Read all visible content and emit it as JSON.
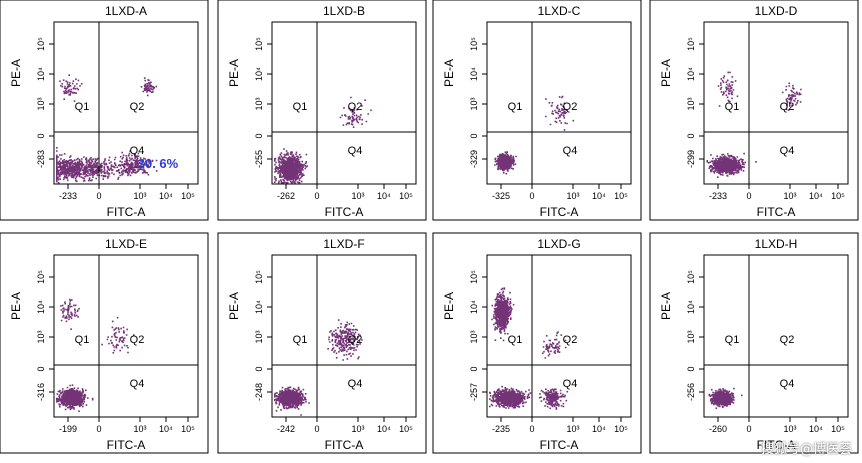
{
  "colors": {
    "panel_bg": "#ffffff",
    "dot": "#5b0f5e",
    "frame": "#000000",
    "highlight": "#2d3bd6"
  },
  "watermark": "搜狐号@博医荟",
  "chart_data": [
    {
      "type": "scatter",
      "title": "1LXD-A",
      "xlabel": "FITC-A",
      "ylabel": "PE-A",
      "x_tick_labels": [
        "-233",
        "0",
        "10³",
        "10⁴",
        "10⁵"
      ],
      "y_tick_labels": [
        "-283",
        "0",
        "10³",
        "10⁴",
        "10⁵"
      ],
      "quadrants": [
        "Q1",
        "Q2",
        "Q4"
      ],
      "annotation": "30. 6%",
      "populations": [
        {
          "quadrant": "Q3",
          "x": 0.1,
          "y": 0.1,
          "spread": [
            0.42,
            0.08
          ],
          "density": "high"
        },
        {
          "quadrant": "Q4",
          "x": 0.55,
          "y": 0.12,
          "spread": [
            0.15,
            0.07
          ],
          "density": "medium"
        },
        {
          "quadrant": "Q2",
          "x": 0.65,
          "y": 0.6,
          "spread": [
            0.05,
            0.05
          ],
          "density": "low"
        },
        {
          "quadrant": "Q1",
          "x": 0.1,
          "y": 0.6,
          "spread": [
            0.08,
            0.08
          ],
          "density": "low"
        }
      ]
    },
    {
      "type": "scatter",
      "title": "1LXD-B",
      "xlabel": "FITC-A",
      "ylabel": "PE-A",
      "x_tick_labels": [
        "-262",
        "0",
        "10³",
        "10⁴",
        "10⁵"
      ],
      "y_tick_labels": [
        "-255",
        "0",
        "10³",
        "10⁴",
        "10⁵"
      ],
      "quadrants": [
        "Q1",
        "Q2",
        "Q4"
      ],
      "annotation": "",
      "populations": [
        {
          "quadrant": "Q3",
          "x": 0.12,
          "y": 0.1,
          "spread": [
            0.1,
            0.1
          ],
          "density": "high"
        },
        {
          "quadrant": "Q2",
          "x": 0.55,
          "y": 0.42,
          "spread": [
            0.1,
            0.1
          ],
          "density": "low"
        }
      ]
    },
    {
      "type": "scatter",
      "title": "1LXD-C",
      "xlabel": "FITC-A",
      "ylabel": "PE-A",
      "x_tick_labels": [
        "-325",
        "0",
        "10³",
        "10⁴",
        "10⁵"
      ],
      "y_tick_labels": [
        "-329",
        "0",
        "10³",
        "10⁴",
        "10⁵"
      ],
      "quadrants": [
        "Q1",
        "Q2",
        "Q4"
      ],
      "annotation": "",
      "populations": [
        {
          "quadrant": "Q3",
          "x": 0.12,
          "y": 0.14,
          "spread": [
            0.06,
            0.05
          ],
          "density": "high"
        },
        {
          "quadrant": "Q2",
          "x": 0.5,
          "y": 0.45,
          "spread": [
            0.1,
            0.1
          ],
          "density": "low"
        }
      ]
    },
    {
      "type": "scatter",
      "title": "1LXD-D",
      "xlabel": "FITC-A",
      "ylabel": "PE-A",
      "x_tick_labels": [
        "-233",
        "0",
        "10³",
        "10⁴",
        "10⁵"
      ],
      "y_tick_labels": [
        "-299",
        "0",
        "10³",
        "10⁴",
        "10⁵"
      ],
      "quadrants": [
        "Q1",
        "Q2",
        "Q4"
      ],
      "annotation": "",
      "populations": [
        {
          "quadrant": "Q3",
          "x": 0.15,
          "y": 0.12,
          "spread": [
            0.12,
            0.06
          ],
          "density": "high"
        },
        {
          "quadrant": "Q1",
          "x": 0.15,
          "y": 0.6,
          "spread": [
            0.08,
            0.1
          ],
          "density": "low"
        },
        {
          "quadrant": "Q2",
          "x": 0.6,
          "y": 0.55,
          "spread": [
            0.08,
            0.08
          ],
          "density": "low"
        }
      ]
    },
    {
      "type": "scatter",
      "title": "1LXD-E",
      "xlabel": "FITC-A",
      "ylabel": "PE-A",
      "x_tick_labels": [
        "-199",
        "0",
        "10³",
        "10⁴",
        "10⁵"
      ],
      "y_tick_labels": [
        "-316",
        "0",
        "10³",
        "10⁴",
        "10⁵"
      ],
      "quadrants": [
        "Q1",
        "Q2",
        "Q4"
      ],
      "annotation": "",
      "populations": [
        {
          "quadrant": "Q3",
          "x": 0.12,
          "y": 0.12,
          "spread": [
            0.1,
            0.06
          ],
          "density": "high"
        },
        {
          "quadrant": "Q1",
          "x": 0.1,
          "y": 0.65,
          "spread": [
            0.08,
            0.1
          ],
          "density": "low"
        },
        {
          "quadrant": "Q2",
          "x": 0.45,
          "y": 0.5,
          "spread": [
            0.1,
            0.1
          ],
          "density": "low"
        }
      ]
    },
    {
      "type": "scatter",
      "title": "1LXD-F",
      "xlabel": "FITC-A",
      "ylabel": "PE-A",
      "x_tick_labels": [
        "-242",
        "0",
        "10³",
        "10⁴",
        "10⁵"
      ],
      "y_tick_labels": [
        "-248",
        "0",
        "10³",
        "10⁴",
        "10⁵"
      ],
      "quadrants": [
        "Q1",
        "Q2",
        "Q4"
      ],
      "annotation": "",
      "populations": [
        {
          "quadrant": "Q3",
          "x": 0.12,
          "y": 0.12,
          "spread": [
            0.1,
            0.06
          ],
          "density": "high"
        },
        {
          "quadrant": "Q2",
          "x": 0.5,
          "y": 0.48,
          "spread": [
            0.12,
            0.12
          ],
          "density": "medium"
        }
      ]
    },
    {
      "type": "scatter",
      "title": "1LXD-G",
      "xlabel": "FITC-A",
      "ylabel": "PE-A",
      "x_tick_labels": [
        "-235",
        "0",
        "10³",
        "10⁴",
        "10⁵"
      ],
      "y_tick_labels": [
        "-257",
        "0",
        "10³",
        "10⁴",
        "10⁵"
      ],
      "quadrants": [
        "Q1",
        "Q2",
        "Q4"
      ],
      "annotation": "",
      "populations": [
        {
          "quadrant": "Q3",
          "x": 0.15,
          "y": 0.12,
          "spread": [
            0.12,
            0.06
          ],
          "density": "high"
        },
        {
          "quadrant": "Q1",
          "x": 0.1,
          "y": 0.65,
          "spread": [
            0.06,
            0.12
          ],
          "density": "high"
        },
        {
          "quadrant": "Q2",
          "x": 0.45,
          "y": 0.45,
          "spread": [
            0.1,
            0.1
          ],
          "density": "low"
        },
        {
          "quadrant": "Q4",
          "x": 0.45,
          "y": 0.12,
          "spread": [
            0.08,
            0.06
          ],
          "density": "medium"
        }
      ]
    },
    {
      "type": "scatter",
      "title": "1LXD-H",
      "xlabel": "FITC-A",
      "ylabel": "PE-A",
      "x_tick_labels": [
        "-260",
        "0",
        "10³",
        "10⁴",
        "10⁵"
      ],
      "y_tick_labels": [
        "-256",
        "0",
        "10³",
        "10⁴",
        "10⁵"
      ],
      "quadrants": [
        "Q1",
        "Q2",
        "Q4"
      ],
      "annotation": "",
      "populations": [
        {
          "quadrant": "Q3",
          "x": 0.12,
          "y": 0.12,
          "spread": [
            0.08,
            0.05
          ],
          "density": "high"
        }
      ]
    }
  ]
}
